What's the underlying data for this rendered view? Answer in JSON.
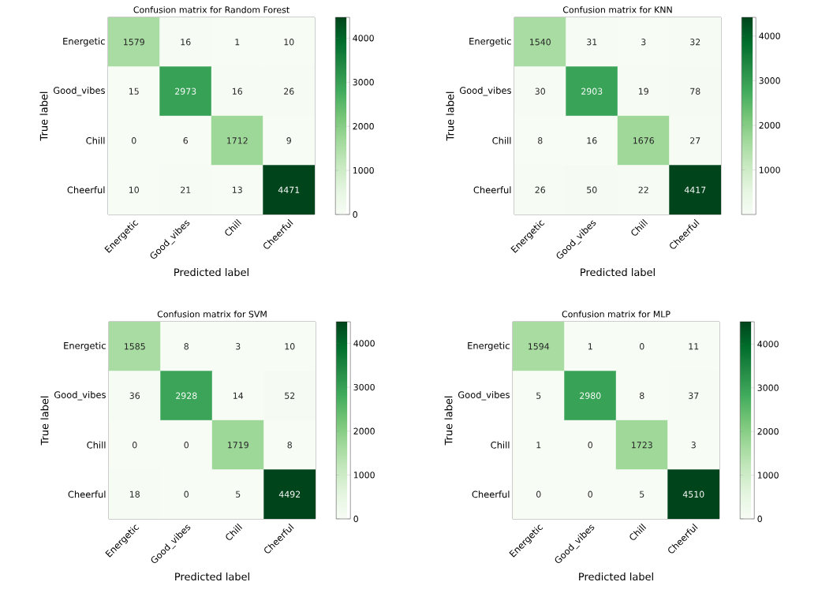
{
  "chart_data": [
    {
      "type": "heatmap",
      "title": "Confusion matrix for Random Forest",
      "xlabel": "Predicted label",
      "ylabel": "True label",
      "categories": [
        "Energetic",
        "Good_vibes",
        "Chill",
        "Cheerful"
      ],
      "y_categories": [
        "Energetic",
        "Good_vibes",
        "Chill",
        "Cheerful"
      ],
      "cells": [
        [
          1579,
          16,
          1,
          10
        ],
        [
          15,
          2973,
          16,
          26
        ],
        [
          0,
          6,
          1712,
          9
        ],
        [
          10,
          21,
          13,
          4471
        ]
      ],
      "clim": [
        0,
        4471
      ],
      "cticks": [
        0,
        1000,
        2000,
        3000,
        4000
      ],
      "data_labels": true
    },
    {
      "type": "heatmap",
      "title": "Confusion matrix for KNN",
      "xlabel": "Predicted label",
      "ylabel": "True label",
      "categories": [
        "Energetic",
        "Good_vibes",
        "Chill",
        "Cheerful"
      ],
      "y_categories": [
        "Energetic",
        "Good_vibes",
        "Chill",
        "Cheerful"
      ],
      "cells": [
        [
          1540,
          31,
          3,
          32
        ],
        [
          30,
          2903,
          19,
          78
        ],
        [
          8,
          16,
          1676,
          27
        ],
        [
          26,
          50,
          22,
          4417
        ]
      ],
      "clim": [
        3,
        4417
      ],
      "cticks": [
        1000,
        2000,
        3000,
        4000
      ],
      "data_labels": true
    },
    {
      "type": "heatmap",
      "title": "Confusion matrix for SVM",
      "xlabel": "Predicted label",
      "ylabel": "True label",
      "categories": [
        "Energetic",
        "Good_vibes",
        "Chill",
        "Cheerful"
      ],
      "y_categories": [
        "Energetic",
        "Good_vibes",
        "Chill",
        "Cheerful"
      ],
      "cells": [
        [
          1585,
          8,
          3,
          10
        ],
        [
          36,
          2928,
          14,
          52
        ],
        [
          0,
          0,
          1719,
          8
        ],
        [
          18,
          0,
          5,
          4492
        ]
      ],
      "clim": [
        0,
        4492
      ],
      "cticks": [
        0,
        1000,
        2000,
        3000,
        4000
      ],
      "data_labels": true
    },
    {
      "type": "heatmap",
      "title": "Confusion matrix for MLP",
      "xlabel": "Predicted label",
      "ylabel": "True label",
      "categories": [
        "Energetic",
        "Good_vibes",
        "Chill",
        "Cheerful"
      ],
      "y_categories": [
        "Energetic",
        "Good_vibes",
        "Chill",
        "Cheerful"
      ],
      "cells": [
        [
          1594,
          1,
          0,
          11
        ],
        [
          5,
          2980,
          8,
          37
        ],
        [
          1,
          0,
          1723,
          3
        ],
        [
          0,
          0,
          5,
          4510
        ]
      ],
      "clim": [
        0,
        4510
      ],
      "cticks": [
        0,
        1000,
        2000,
        3000,
        4000
      ],
      "data_labels": true
    }
  ]
}
